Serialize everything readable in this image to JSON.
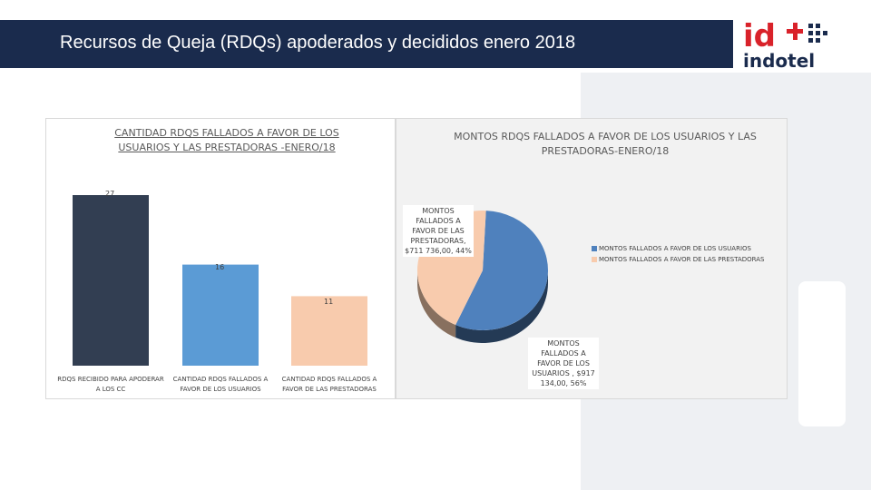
{
  "slide": {
    "title": "Recursos de Queja (RDQs) apoderados y decididos enero 2018"
  },
  "logo": {
    "mark": "id",
    "name": "indotel",
    "color_red": "#d9222a",
    "color_navy": "#1a2b4d"
  },
  "chart_data": [
    {
      "type": "bar",
      "title": "CANTIDAD RDQS FALLADOS A FAVOR DE LOS USUARIOS Y LAS PRESTADORAS -ENERO/18",
      "categories": [
        "RDQS RECIBIDO PARA APODERAR A LOS CC",
        "CANTIDAD RDQS FALLADOS A FAVOR DE LOS USUARIOS",
        "CANTIDAD RDQS FALLADOS A FAVOR DE LAS PRESTADORAS"
      ],
      "values": [
        27,
        16,
        11
      ],
      "value_labels": [
        "27",
        "16",
        "11"
      ],
      "colors": [
        "#323e52",
        "#5b9bd5",
        "#f8cbad"
      ],
      "ylim": [
        0,
        27
      ],
      "grid": false,
      "legend": "none"
    },
    {
      "type": "pie",
      "title": "MONTOS RDQS FALLADOS A FAVOR DE LOS USUARIOS Y LAS PRESTADORAS-ENERO/18",
      "slices": [
        {
          "name": "MONTOS FALLADOS A FAVOR DE LOS USUARIOS",
          "value": 56,
          "label": "MONTOS FALLADOS A FAVOR DE LOS USUARIOS , $917 134,00, 56%",
          "color": "#4f81bd"
        },
        {
          "name": "MONTOS FALLADOS A FAVOR DE LAS PRESTADORAS",
          "value": 44,
          "label": "MONTOS FALLADOS A FAVOR DE LAS PRESTADORAS, $711 736,00, 44%",
          "color": "#f8cbad"
        }
      ],
      "legend": "right",
      "style": "3d"
    }
  ]
}
